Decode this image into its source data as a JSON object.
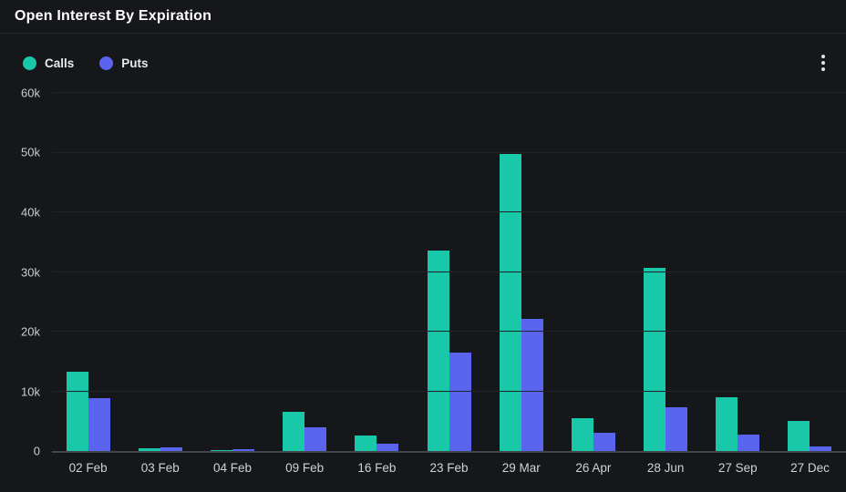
{
  "header": {
    "title": "Open Interest By Expiration"
  },
  "legend": {
    "items": [
      {
        "label": "Calls",
        "color": "#19c8a9"
      },
      {
        "label": "Puts",
        "color": "#5a64ee"
      }
    ]
  },
  "icons": {
    "menu": "kebab-vertical-dots"
  },
  "chart_data": {
    "type": "bar",
    "title": "Open Interest By Expiration",
    "categories": [
      "02 Feb",
      "03 Feb",
      "04 Feb",
      "09 Feb",
      "16 Feb",
      "23 Feb",
      "29 Mar",
      "26 Apr",
      "28 Jun",
      "27 Sep",
      "27 Dec"
    ],
    "series": [
      {
        "name": "Calls",
        "color": "#19c8a9",
        "values": [
          13300,
          400,
          100,
          6500,
          2600,
          33600,
          49700,
          5500,
          30700,
          9000,
          5100
        ]
      },
      {
        "name": "Puts",
        "color": "#5a64ee",
        "values": [
          8800,
          600,
          300,
          4000,
          1300,
          16500,
          22100,
          3100,
          7300,
          2700,
          700
        ]
      }
    ],
    "xlabel": "",
    "ylabel": "",
    "ylim": [
      0,
      60000
    ],
    "yticks": [
      {
        "value": 0,
        "label": "0"
      },
      {
        "value": 10000,
        "label": "10k"
      },
      {
        "value": 20000,
        "label": "20k"
      },
      {
        "value": 30000,
        "label": "30k"
      },
      {
        "value": 40000,
        "label": "40k"
      },
      {
        "value": 50000,
        "label": "50k"
      },
      {
        "value": 60000,
        "label": "60k"
      }
    ],
    "grid": "horizontal",
    "legend_position": "top-left",
    "background": "#15171a"
  }
}
